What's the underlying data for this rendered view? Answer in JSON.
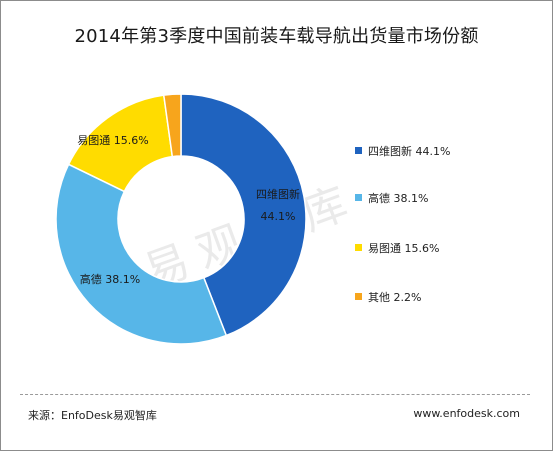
{
  "title": "2014年第3季度中国前装车载导航出货量市场份额",
  "watermark": "易观智库",
  "footer": {
    "source": "来源：EnfoDesk易观智库",
    "website": "www.enfodesk.com"
  },
  "chart_data": {
    "type": "pie",
    "variant": "donut",
    "title": "2014年第3季度中国前装车载导航出货量市场份额",
    "legend_position": "right",
    "slices": [
      {
        "label": "四维图新",
        "value": 44.1,
        "display": "44.1%",
        "color": "#1f63bf"
      },
      {
        "label": "高德",
        "value": 38.1,
        "display": "38.1%",
        "color": "#57b6e8"
      },
      {
        "label": "易图通",
        "value": 15.6,
        "display": "15.6%",
        "color": "#ffdc00"
      },
      {
        "label": "其他",
        "value": 2.2,
        "display": "2.2%",
        "color": "#f7a51c"
      }
    ]
  }
}
